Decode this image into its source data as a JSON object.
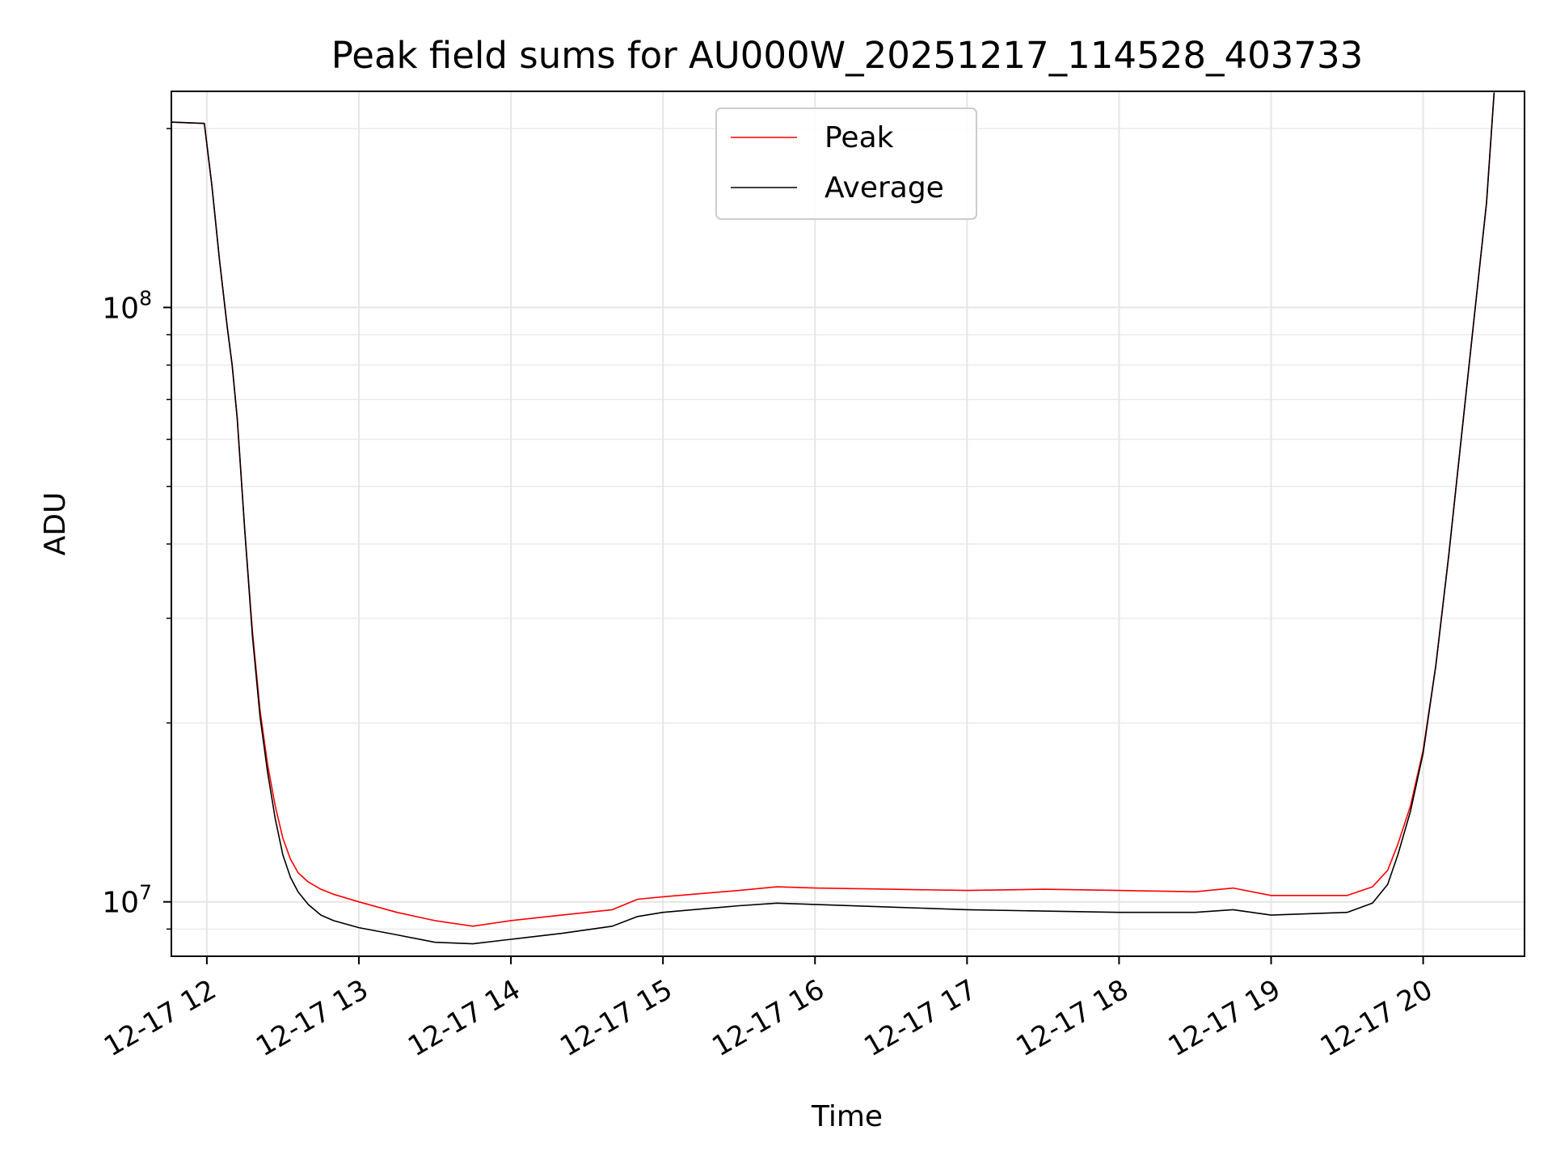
{
  "chart_data": {
    "type": "line",
    "title": "Peak field sums for AU000W_20251217_114528_403733",
    "xlabel": "Time",
    "ylabel": "ADU",
    "y_scale": "log",
    "ylim": [
      8100000,
      231000000
    ],
    "xlim": [
      "2025-12-17 11:46",
      "2025-12-17 20:40"
    ],
    "grid": true,
    "legend_position": "upper center",
    "x_ticks": [
      {
        "x": "2025-12-17 12:00",
        "label": "12-17 12"
      },
      {
        "x": "2025-12-17 13:00",
        "label": "12-17 13"
      },
      {
        "x": "2025-12-17 14:00",
        "label": "12-17 14"
      },
      {
        "x": "2025-12-17 15:00",
        "label": "12-17 15"
      },
      {
        "x": "2025-12-17 16:00",
        "label": "12-17 16"
      },
      {
        "x": "2025-12-17 17:00",
        "label": "12-17 17"
      },
      {
        "x": "2025-12-17 18:00",
        "label": "12-17 18"
      },
      {
        "x": "2025-12-17 19:00",
        "label": "12-17 19"
      },
      {
        "x": "2025-12-17 20:00",
        "label": "12-17 20"
      }
    ],
    "y_ticks": [
      {
        "value": 10000000,
        "label_base": "10",
        "label_exp": "7"
      },
      {
        "value": 100000000,
        "label_base": "10",
        "label_exp": "8"
      }
    ],
    "series": [
      {
        "name": "Peak",
        "color": "#ff0000",
        "x": [
          "2025-12-17 11:46",
          "2025-12-17 11:59",
          "2025-12-17 12:02",
          "2025-12-17 12:05",
          "2025-12-17 12:08",
          "2025-12-17 12:10",
          "2025-12-17 12:12",
          "2025-12-17 12:15",
          "2025-12-17 12:18",
          "2025-12-17 12:21",
          "2025-12-17 12:24",
          "2025-12-17 12:27",
          "2025-12-17 12:30",
          "2025-12-17 12:33",
          "2025-12-17 12:36",
          "2025-12-17 12:40",
          "2025-12-17 12:45",
          "2025-12-17 12:50",
          "2025-12-17 13:00",
          "2025-12-17 13:15",
          "2025-12-17 13:30",
          "2025-12-17 13:45",
          "2025-12-17 14:00",
          "2025-12-17 14:20",
          "2025-12-17 14:40",
          "2025-12-17 14:50",
          "2025-12-17 15:00",
          "2025-12-17 15:30",
          "2025-12-17 15:45",
          "2025-12-17 16:00",
          "2025-12-17 16:30",
          "2025-12-17 17:00",
          "2025-12-17 17:30",
          "2025-12-17 18:00",
          "2025-12-17 18:30",
          "2025-12-17 18:45",
          "2025-12-17 19:00",
          "2025-12-17 19:30",
          "2025-12-17 19:40",
          "2025-12-17 19:46",
          "2025-12-17 19:50",
          "2025-12-17 19:55",
          "2025-12-17 20:00",
          "2025-12-17 20:05",
          "2025-12-17 20:10",
          "2025-12-17 20:15",
          "2025-12-17 20:20",
          "2025-12-17 20:25",
          "2025-12-17 20:28"
        ],
        "y": [
          205000000,
          204000000,
          160000000,
          120000000,
          93000000,
          80000000,
          65000000,
          42000000,
          28500000,
          21000000,
          17000000,
          14500000,
          12800000,
          11800000,
          11200000,
          10800000,
          10500000,
          10300000,
          10000000,
          9600000,
          9300000,
          9100000,
          9300000,
          9500000,
          9700000,
          10100000,
          10200000,
          10450000,
          10600000,
          10550000,
          10500000,
          10450000,
          10500000,
          10450000,
          10400000,
          10550000,
          10250000,
          10250000,
          10600000,
          11300000,
          12500000,
          14500000,
          18000000,
          25000000,
          38000000,
          60000000,
          95000000,
          150000000,
          230000000
        ]
      },
      {
        "name": "Average",
        "color": "#000000",
        "x": [
          "2025-12-17 11:46",
          "2025-12-17 11:59",
          "2025-12-17 12:02",
          "2025-12-17 12:05",
          "2025-12-17 12:08",
          "2025-12-17 12:10",
          "2025-12-17 12:12",
          "2025-12-17 12:15",
          "2025-12-17 12:18",
          "2025-12-17 12:21",
          "2025-12-17 12:24",
          "2025-12-17 12:27",
          "2025-12-17 12:30",
          "2025-12-17 12:33",
          "2025-12-17 12:36",
          "2025-12-17 12:40",
          "2025-12-17 12:45",
          "2025-12-17 12:50",
          "2025-12-17 13:00",
          "2025-12-17 13:15",
          "2025-12-17 13:30",
          "2025-12-17 13:45",
          "2025-12-17 14:00",
          "2025-12-17 14:20",
          "2025-12-17 14:40",
          "2025-12-17 14:50",
          "2025-12-17 15:00",
          "2025-12-17 15:30",
          "2025-12-17 15:45",
          "2025-12-17 16:00",
          "2025-12-17 16:30",
          "2025-12-17 17:00",
          "2025-12-17 17:30",
          "2025-12-17 18:00",
          "2025-12-17 18:30",
          "2025-12-17 18:45",
          "2025-12-17 19:00",
          "2025-12-17 19:30",
          "2025-12-17 19:40",
          "2025-12-17 19:46",
          "2025-12-17 19:50",
          "2025-12-17 19:55",
          "2025-12-17 20:00",
          "2025-12-17 20:05",
          "2025-12-17 20:10",
          "2025-12-17 20:15",
          "2025-12-17 20:20",
          "2025-12-17 20:25",
          "2025-12-17 20:28"
        ],
        "y": [
          205000000,
          204000000,
          160000000,
          120000000,
          93000000,
          80000000,
          65000000,
          42000000,
          28000000,
          20500000,
          16500000,
          13800000,
          12000000,
          11000000,
          10400000,
          9900000,
          9500000,
          9300000,
          9050000,
          8800000,
          8550000,
          8500000,
          8650000,
          8850000,
          9100000,
          9450000,
          9600000,
          9850000,
          9950000,
          9900000,
          9800000,
          9700000,
          9650000,
          9600000,
          9600000,
          9700000,
          9500000,
          9600000,
          9950000,
          10700000,
          12000000,
          14200000,
          17800000,
          25000000,
          38000000,
          60000000,
          95000000,
          150000000,
          230000000
        ]
      }
    ]
  }
}
